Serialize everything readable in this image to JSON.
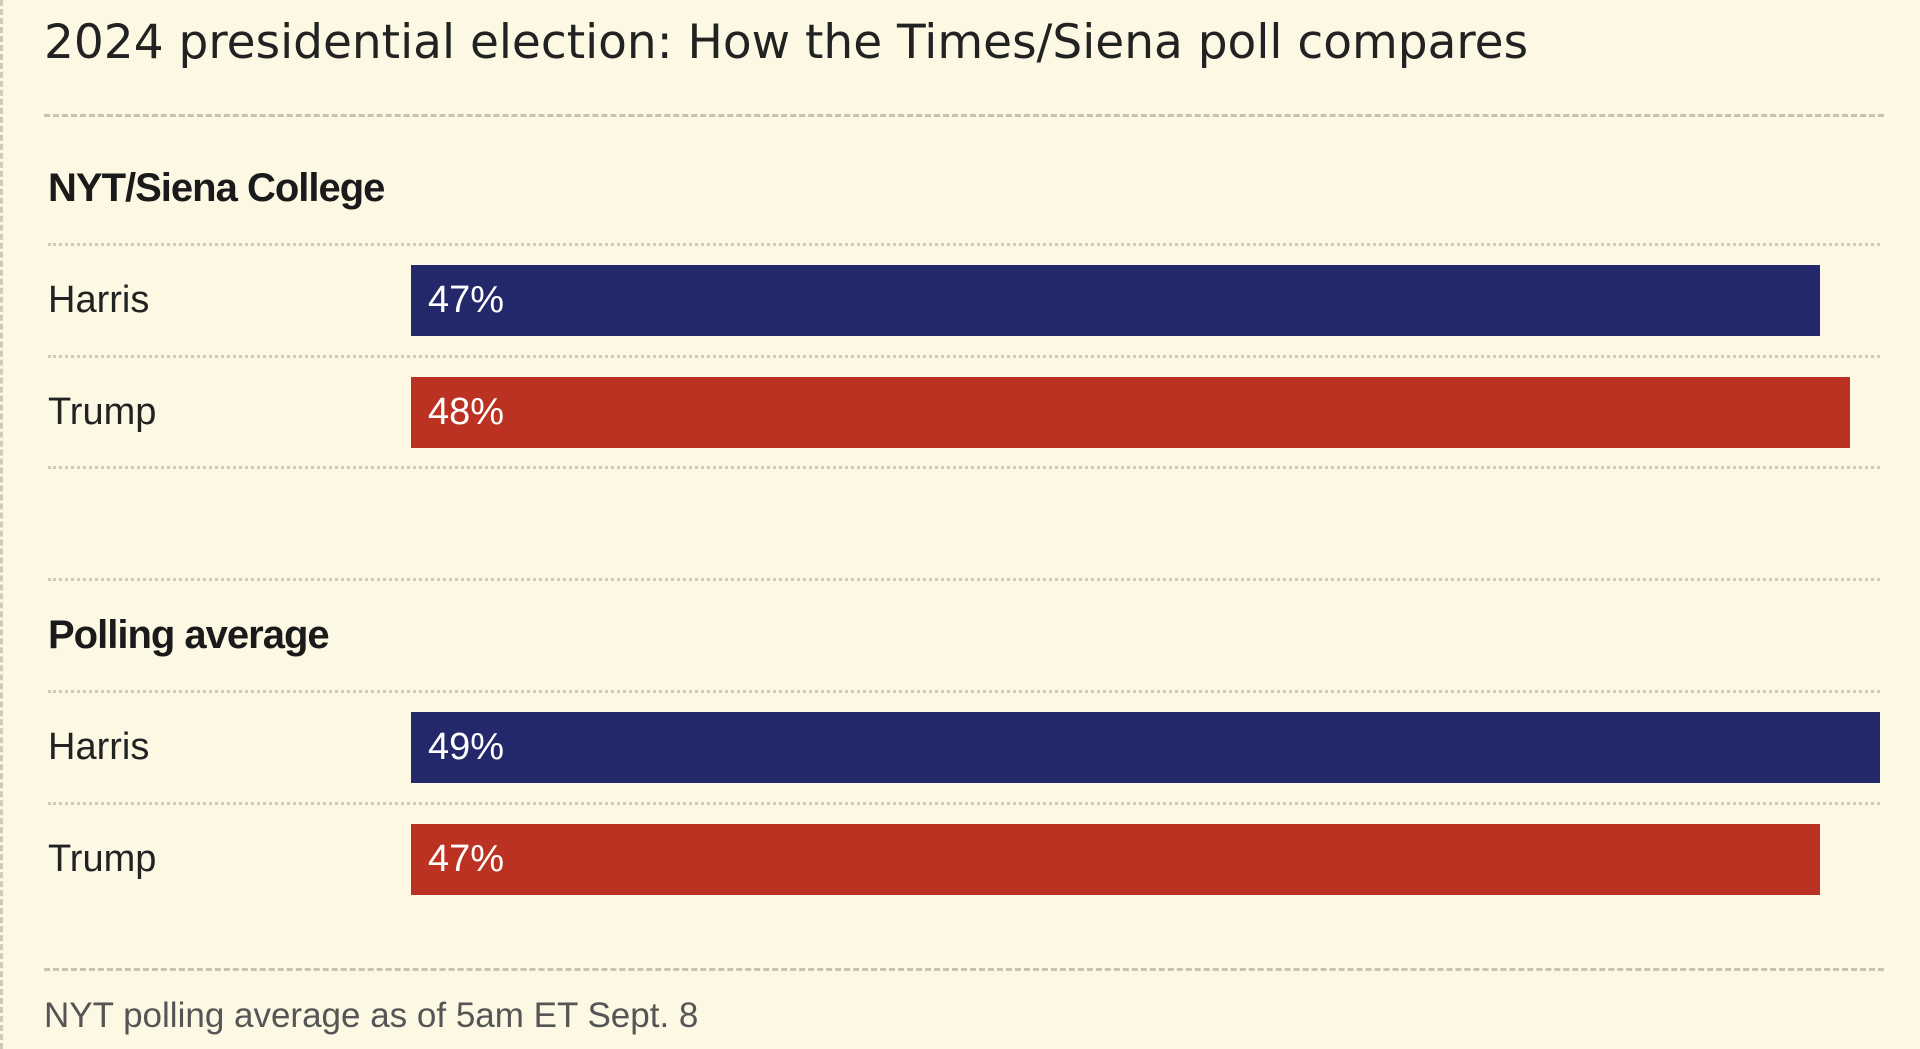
{
  "title": "2024 presidential election: How the Times/Siena poll compares",
  "source_note": "NYT polling average as of 5am ET Sept. 8",
  "colors": {
    "harris": "#22286a",
    "trump": "#bb3222",
    "background": "#fcf8e4"
  },
  "chart_data": {
    "type": "bar",
    "orientation": "horizontal",
    "unit": "%",
    "groups": [
      {
        "name": "NYT/Siena College",
        "bars": [
          {
            "candidate": "Harris",
            "value": 47,
            "label": "47%"
          },
          {
            "candidate": "Trump",
            "value": 48,
            "label": "48%"
          }
        ]
      },
      {
        "name": "Polling average",
        "bars": [
          {
            "candidate": "Harris",
            "value": 49,
            "label": "49%"
          },
          {
            "candidate": "Trump",
            "value": 47,
            "label": "47%"
          }
        ]
      }
    ],
    "xlim": [
      0,
      49
    ],
    "grid": false,
    "legend": "none"
  }
}
